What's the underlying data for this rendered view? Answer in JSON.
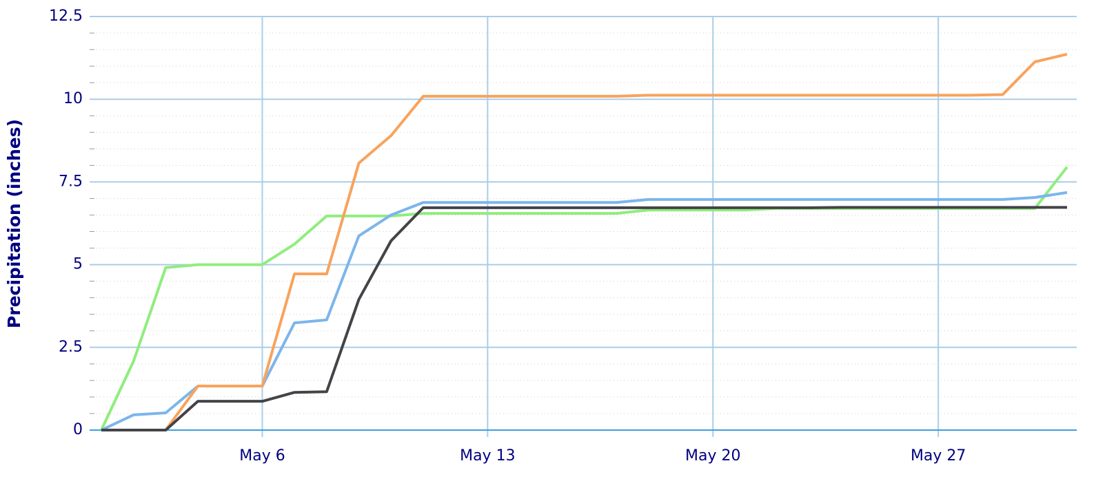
{
  "chart_data": {
    "type": "line",
    "y_label": "Precipitation (inches)",
    "x": [
      1,
      2,
      3,
      4,
      5,
      6,
      7,
      8,
      9,
      10,
      11,
      12,
      13,
      14,
      15,
      16,
      17,
      18,
      19,
      20,
      21,
      22,
      23,
      24,
      25,
      26,
      27,
      28,
      29,
      30,
      31
    ],
    "xlim": [
      0.636,
      31.3
    ],
    "xticks": [
      {
        "value": 6,
        "label": "May 6"
      },
      {
        "value": 13,
        "label": "May 13"
      },
      {
        "value": 20,
        "label": "May 20"
      },
      {
        "value": 27,
        "label": "May 27"
      }
    ],
    "ylim": [
      0,
      12.5
    ],
    "yticks": [
      0,
      2.5,
      5,
      7.5,
      10,
      12.5
    ],
    "grid": true,
    "minor_grid": true,
    "series": [
      {
        "color": "#90ed7d",
        "values": [
          0,
          2.08,
          4.91,
          5,
          5,
          5,
          5.62,
          6.47,
          6.47,
          6.47,
          6.55,
          6.55,
          6.55,
          6.55,
          6.55,
          6.55,
          6.55,
          6.65,
          6.65,
          6.65,
          6.65,
          6.7,
          6.7,
          6.7,
          6.7,
          6.7,
          6.7,
          6.7,
          6.7,
          6.7,
          7.95
        ]
      },
      {
        "color": "#7cb5ec",
        "values": [
          0,
          0.46,
          0.52,
          1.33,
          1.33,
          1.33,
          3.24,
          3.33,
          5.87,
          6.5,
          6.88,
          6.88,
          6.88,
          6.88,
          6.88,
          6.88,
          6.88,
          6.97,
          6.97,
          6.97,
          6.97,
          6.97,
          6.97,
          6.97,
          6.97,
          6.97,
          6.97,
          6.97,
          6.97,
          7.03,
          7.18
        ]
      },
      {
        "color": "#f7a35c",
        "values": [
          0,
          0,
          0,
          1.33,
          1.33,
          1.33,
          4.72,
          4.72,
          8.07,
          8.9,
          10.09,
          10.09,
          10.09,
          10.09,
          10.09,
          10.09,
          10.09,
          10.12,
          10.12,
          10.12,
          10.12,
          10.12,
          10.12,
          10.12,
          10.12,
          10.12,
          10.12,
          10.12,
          10.14,
          11.13,
          11.36
        ]
      },
      {
        "color": "#434348",
        "values": [
          0,
          0,
          0,
          0.87,
          0.87,
          0.87,
          1.14,
          1.16,
          3.95,
          5.72,
          6.72,
          6.72,
          6.72,
          6.72,
          6.72,
          6.72,
          6.72,
          6.72,
          6.72,
          6.72,
          6.72,
          6.72,
          6.72,
          6.73,
          6.73,
          6.73,
          6.73,
          6.73,
          6.73,
          6.73,
          6.73
        ]
      }
    ]
  }
}
